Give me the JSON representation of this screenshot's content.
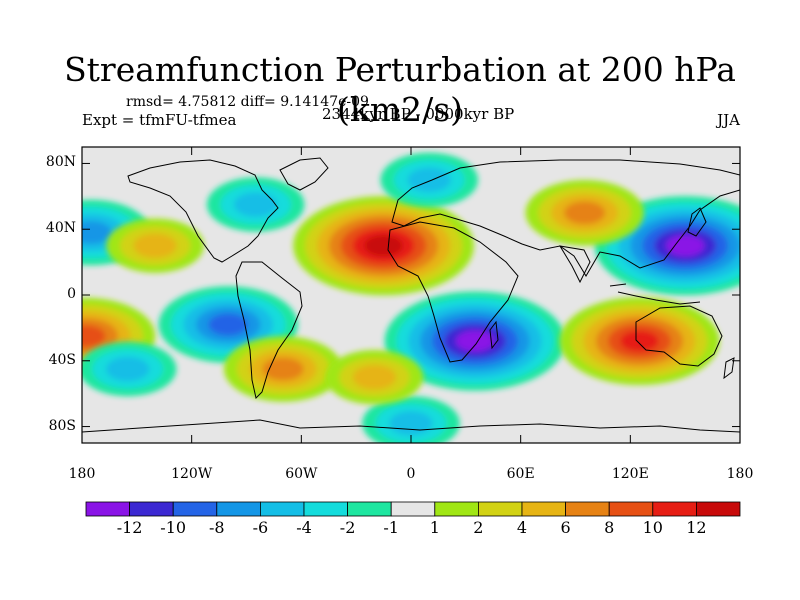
{
  "chart_data": {
    "type": "heatmap",
    "title": "Streamfunction Perturbation at 200 hPa (km2/s)",
    "stats": "rmsd= 4.75812  diff= 9.14147e-09",
    "experiment": "Expt = tfmFU-tfmea",
    "period": "2344kyr BP - 0000kyr BP",
    "season": "JJA",
    "xlim": [
      -180,
      180
    ],
    "ylim": [
      -90,
      90
    ],
    "x_ticks": [
      {
        "value": -180,
        "label": "180"
      },
      {
        "value": -120,
        "label": "120W"
      },
      {
        "value": -60,
        "label": "60W"
      },
      {
        "value": 0,
        "label": "0"
      },
      {
        "value": 60,
        "label": "60E"
      },
      {
        "value": 120,
        "label": "120E"
      },
      {
        "value": 180,
        "label": "180"
      }
    ],
    "y_ticks": [
      {
        "value": 80,
        "label": "80N"
      },
      {
        "value": 40,
        "label": "40N"
      },
      {
        "value": 0,
        "label": "0"
      },
      {
        "value": -40,
        "label": "40S"
      },
      {
        "value": -80,
        "label": "80S"
      }
    ],
    "colorbar": {
      "levels": [
        "-12",
        "-10",
        "-8",
        "-6",
        "-4",
        "-2",
        "-1",
        "1",
        "2",
        "4",
        "6",
        "8",
        "10",
        "12"
      ],
      "colors": [
        "#8a14e6",
        "#3c28d2",
        "#2464e6",
        "#1496e6",
        "#14bee6",
        "#14dcdc",
        "#1ee6a0",
        "#e6e6e6",
        "#a0e614",
        "#d2d214",
        "#e6b414",
        "#e68214",
        "#e65014",
        "#e61e14",
        "#c80a0a"
      ]
    },
    "anomaly_centers": [
      {
        "lon": -15,
        "lat": 30,
        "value": 12
      },
      {
        "lon": 150,
        "lat": 30,
        "value": -12
      },
      {
        "lon": 35,
        "lat": -28,
        "value": -12
      },
      {
        "lon": -100,
        "lat": -18,
        "value": -8
      },
      {
        "lon": 125,
        "lat": -28,
        "value": 10
      },
      {
        "lon": -178,
        "lat": -25,
        "value": 8
      },
      {
        "lon": -70,
        "lat": -45,
        "value": 6
      },
      {
        "lon": 95,
        "lat": 50,
        "value": 6
      },
      {
        "lon": -175,
        "lat": 38,
        "value": -6
      },
      {
        "lon": -85,
        "lat": 55,
        "value": -4
      },
      {
        "lon": 10,
        "lat": 70,
        "value": -4
      },
      {
        "lon": 0,
        "lat": -78,
        "value": -4
      },
      {
        "lon": -155,
        "lat": -45,
        "value": -4
      },
      {
        "lon": -140,
        "lat": 30,
        "value": 4
      },
      {
        "lon": -20,
        "lat": -50,
        "value": 4
      }
    ]
  }
}
